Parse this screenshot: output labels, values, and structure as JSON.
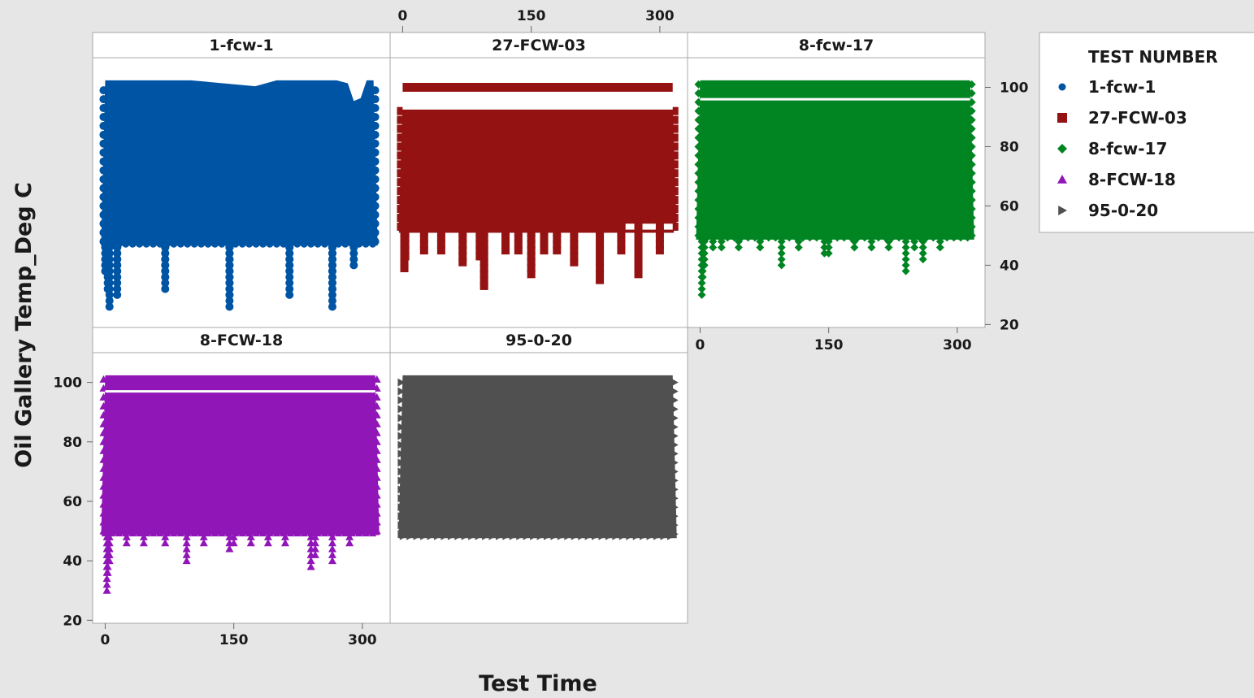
{
  "chart_data": {
    "type": "scatter",
    "xlabel": "Test Time",
    "ylabel": "Oil Gallery Temp_Deg C",
    "xlim": [
      -8,
      320
    ],
    "ylim": [
      19,
      110
    ],
    "x_ticks": [
      "0",
      "150",
      "300"
    ],
    "y_ticks": [
      "20",
      "40",
      "60",
      "80",
      "100"
    ],
    "legend": {
      "title": "TEST NUMBER",
      "placement": "right"
    },
    "series": [
      {
        "name": "1-fcw-1",
        "color": "#0054a4",
        "marker": "circle",
        "band": {
          "x": [
            0,
            313
          ],
          "y_low": 48,
          "y_high": 101
        },
        "upper_edge": [
          [
            0,
            101
          ],
          [
            100,
            101
          ],
          [
            175,
            99
          ],
          [
            200,
            101
          ],
          [
            270,
            101
          ],
          [
            283,
            100
          ],
          [
            290,
            94
          ],
          [
            298,
            95
          ],
          [
            305,
            101
          ],
          [
            313,
            101
          ]
        ],
        "sparse_points": [
          [
            0,
            38
          ],
          [
            3,
            31
          ],
          [
            5,
            26
          ],
          [
            14,
            39
          ],
          [
            14,
            35
          ],
          [
            14,
            30
          ],
          [
            70,
            36
          ],
          [
            70,
            32
          ],
          [
            145,
            36
          ],
          [
            145,
            30
          ],
          [
            145,
            26
          ],
          [
            215,
            37
          ],
          [
            215,
            30
          ],
          [
            265,
            38
          ],
          [
            265,
            32
          ],
          [
            265,
            26
          ],
          [
            290,
            39
          ]
        ]
      },
      {
        "name": "27-FCW-03",
        "color": "#951213",
        "marker": "square",
        "band": {
          "x": [
            0,
            315
          ],
          "y_low": 53,
          "y_high": 92
        },
        "top_line": {
          "x": [
            0,
            315
          ],
          "y": 100
        },
        "lower_line": {
          "x": [
            260,
            315
          ],
          "y": 51
        },
        "sparse_points": [
          [
            2,
            38
          ],
          [
            3,
            42
          ],
          [
            25,
            45
          ],
          [
            45,
            44
          ],
          [
            70,
            40
          ],
          [
            90,
            42
          ],
          [
            95,
            33
          ],
          [
            120,
            44
          ],
          [
            135,
            44
          ],
          [
            150,
            37
          ],
          [
            165,
            44
          ],
          [
            180,
            45
          ],
          [
            200,
            40
          ],
          [
            230,
            34
          ],
          [
            255,
            44
          ],
          [
            275,
            37
          ],
          [
            300,
            44
          ]
        ]
      },
      {
        "name": "8-fcw-17",
        "color": "#008522",
        "marker": "diamond",
        "band": {
          "x": [
            0,
            315
          ],
          "y_low": 50,
          "y_high": 101
        },
        "top_line": {
          "x": [
            0,
            315
          ],
          "y": 96
        },
        "sparse_points": [
          [
            2,
            30
          ],
          [
            3,
            35
          ],
          [
            5,
            40
          ],
          [
            15,
            46
          ],
          [
            25,
            45
          ],
          [
            45,
            46
          ],
          [
            70,
            45
          ],
          [
            95,
            39
          ],
          [
            115,
            45
          ],
          [
            145,
            43
          ],
          [
            150,
            44
          ],
          [
            180,
            45
          ],
          [
            200,
            45
          ],
          [
            220,
            45
          ],
          [
            240,
            37
          ],
          [
            250,
            46
          ],
          [
            260,
            41
          ],
          [
            280,
            45
          ]
        ]
      },
      {
        "name": "8-FCW-18",
        "color": "#9116b8",
        "marker": "triangle-up",
        "band": {
          "x": [
            0,
            315
          ],
          "y_low": 50,
          "y_high": 101
        },
        "top_line": {
          "x": [
            0,
            315
          ],
          "y": 97
        },
        "sparse_points": [
          [
            2,
            30
          ],
          [
            3,
            35
          ],
          [
            5,
            40
          ],
          [
            25,
            46
          ],
          [
            45,
            46
          ],
          [
            70,
            46
          ],
          [
            95,
            40
          ],
          [
            115,
            46
          ],
          [
            145,
            43
          ],
          [
            150,
            45
          ],
          [
            170,
            46
          ],
          [
            190,
            46
          ],
          [
            210,
            46
          ],
          [
            240,
            38
          ],
          [
            245,
            42
          ],
          [
            265,
            40
          ],
          [
            285,
            46
          ]
        ]
      },
      {
        "name": "95-0-20",
        "color": "#505050",
        "marker": "triangle-right",
        "band": {
          "x": [
            0,
            315
          ],
          "y_low": 49,
          "y_high": 101
        },
        "sparse_points": []
      }
    ]
  }
}
